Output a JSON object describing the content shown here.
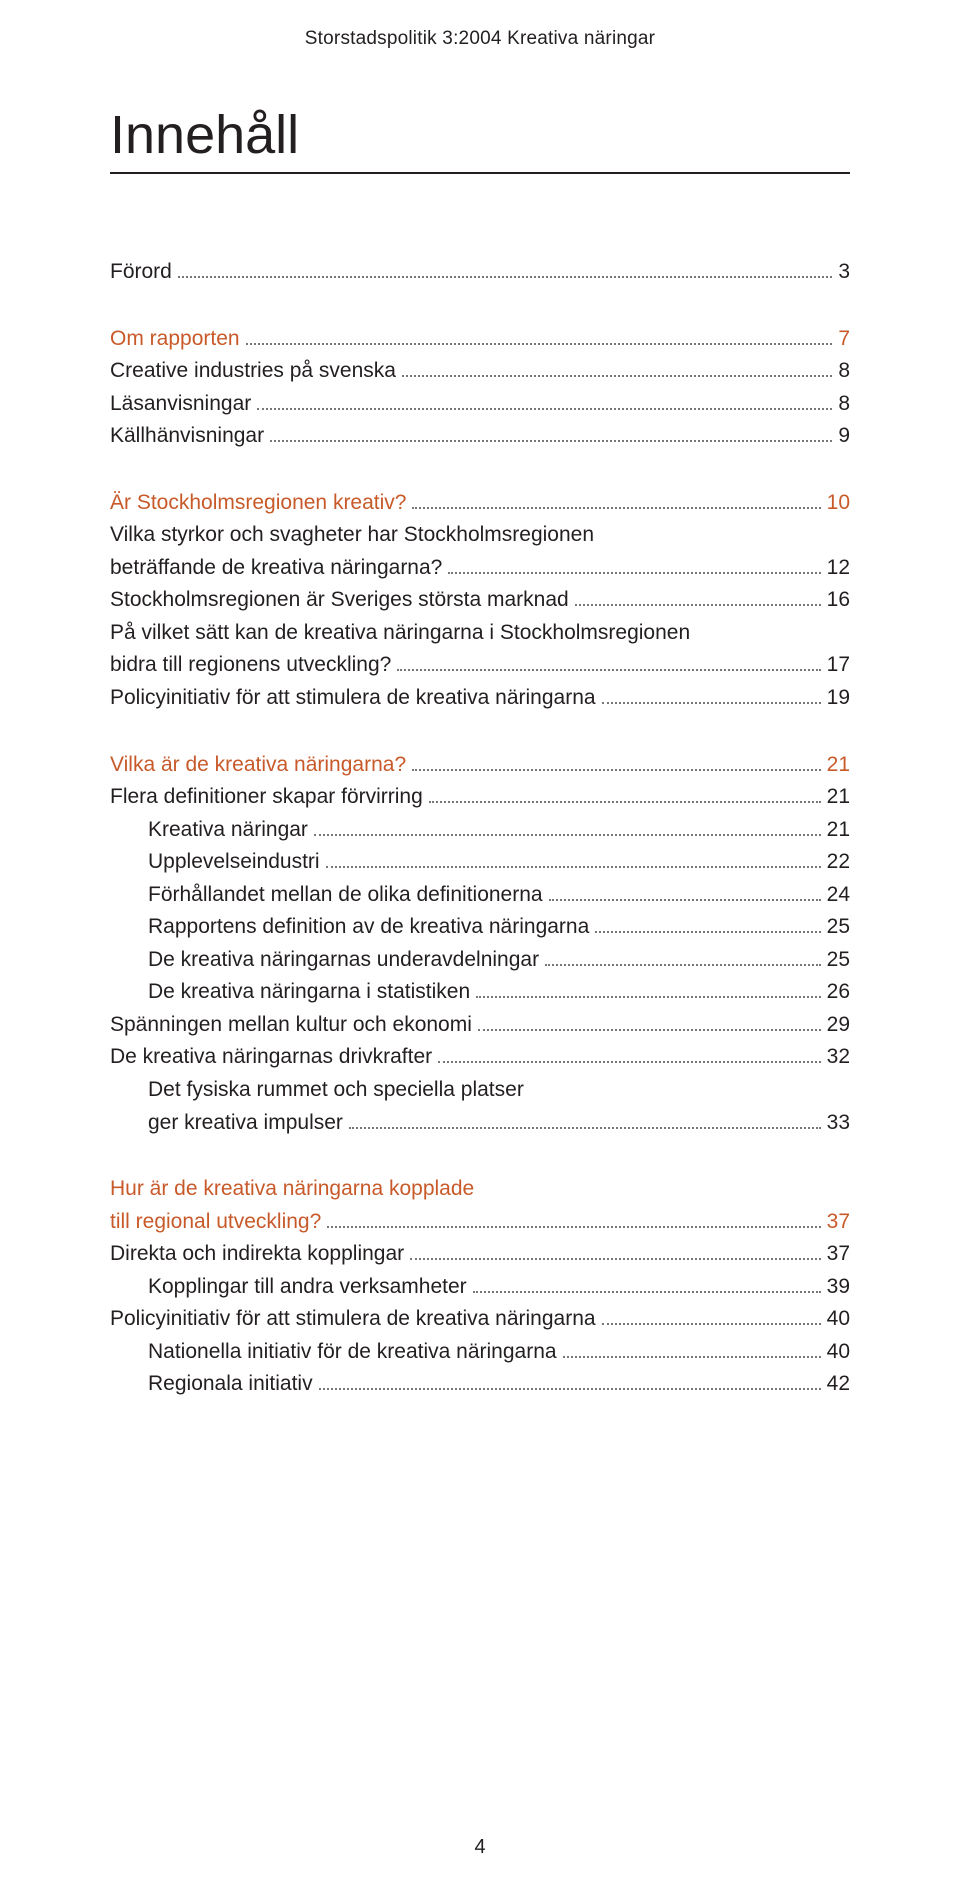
{
  "colors": {
    "text": "#231f20",
    "accent": "#c85a2a",
    "leader": "#777777",
    "background": "#ffffff"
  },
  "runningHead": "Storstadspolitik 3:2004  Kreativa näringar",
  "title": "Innehåll",
  "footerPage": "4",
  "toc": [
    {
      "type": "entry",
      "indent": 0,
      "label": "Förord",
      "page": "3"
    },
    {
      "type": "gap"
    },
    {
      "type": "section",
      "indent": 0,
      "label": "Om rapporten",
      "page": "7"
    },
    {
      "type": "entry",
      "indent": 0,
      "label": "Creative industries på svenska",
      "page": "8"
    },
    {
      "type": "entry",
      "indent": 0,
      "label": "Läsanvisningar",
      "page": "8"
    },
    {
      "type": "entry",
      "indent": 0,
      "label": "Källhänvisningar",
      "page": "9"
    },
    {
      "type": "gap"
    },
    {
      "type": "section",
      "indent": 0,
      "label": "Är Stockholmsregionen kreativ?",
      "page": "10"
    },
    {
      "type": "cont",
      "indent": 0,
      "label": "Vilka styrkor och svagheter har Stockholmsregionen"
    },
    {
      "type": "entry",
      "indent": 0,
      "label": "beträffande de kreativa näringarna?",
      "page": "12"
    },
    {
      "type": "entry",
      "indent": 0,
      "label": "Stockholmsregionen är Sveriges största marknad",
      "page": "16"
    },
    {
      "type": "cont",
      "indent": 0,
      "label": "På vilket sätt kan de kreativa näringarna i Stockholmsregionen"
    },
    {
      "type": "entry",
      "indent": 0,
      "label": "bidra till regionens utveckling?",
      "page": "17"
    },
    {
      "type": "entry",
      "indent": 0,
      "label": "Policyinitiativ för att stimulera de kreativa näringarna",
      "page": "19"
    },
    {
      "type": "gap"
    },
    {
      "type": "section",
      "indent": 0,
      "label": "Vilka är de kreativa näringarna?",
      "page": "21"
    },
    {
      "type": "entry",
      "indent": 0,
      "label": "Flera definitioner skapar förvirring",
      "page": "21"
    },
    {
      "type": "entry",
      "indent": 1,
      "label": "Kreativa näringar",
      "page": "21"
    },
    {
      "type": "entry",
      "indent": 1,
      "label": "Upplevelseindustri",
      "page": "22"
    },
    {
      "type": "entry",
      "indent": 1,
      "label": "Förhållandet mellan de olika definitionerna",
      "page": "24"
    },
    {
      "type": "entry",
      "indent": 1,
      "label": "Rapportens definition av de kreativa näringarna",
      "page": "25"
    },
    {
      "type": "entry",
      "indent": 1,
      "label": "De kreativa näringarnas underavdelningar",
      "page": "25"
    },
    {
      "type": "entry",
      "indent": 1,
      "label": "De kreativa näringarna i statistiken",
      "page": "26"
    },
    {
      "type": "entry",
      "indent": 0,
      "label": "Spänningen mellan kultur och ekonomi",
      "page": "29"
    },
    {
      "type": "entry",
      "indent": 0,
      "label": "De kreativa näringarnas drivkrafter",
      "page": "32"
    },
    {
      "type": "cont",
      "indent": 1,
      "label": "Det fysiska rummet och speciella platser"
    },
    {
      "type": "entry",
      "indent": 1,
      "label": "ger kreativa impulser",
      "page": "33"
    },
    {
      "type": "gap"
    },
    {
      "type": "section-cont",
      "indent": 0,
      "label": "Hur är de kreativa näringarna kopplade"
    },
    {
      "type": "section",
      "indent": 0,
      "label": "till regional utveckling?",
      "page": "37"
    },
    {
      "type": "entry",
      "indent": 0,
      "label": "Direkta och indirekta kopplingar",
      "page": "37"
    },
    {
      "type": "entry",
      "indent": 1,
      "label": "Kopplingar till andra verksamheter",
      "page": "39"
    },
    {
      "type": "entry",
      "indent": 0,
      "label": "Policyinitiativ för att stimulera de kreativa näringarna",
      "page": "40"
    },
    {
      "type": "entry",
      "indent": 1,
      "label": "Nationella initiativ för de kreativa näringarna",
      "page": "40"
    },
    {
      "type": "entry",
      "indent": 1,
      "label": "Regionala initiativ",
      "page": "42"
    }
  ]
}
